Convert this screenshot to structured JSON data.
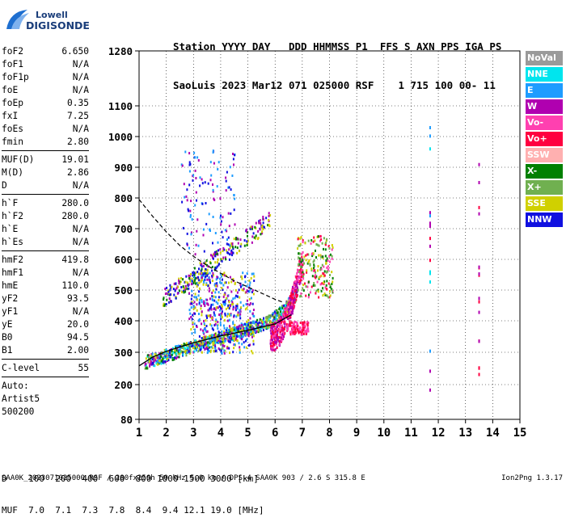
{
  "logo": {
    "line1": "Lowell",
    "line2": "DIGISONDE"
  },
  "header": {
    "row1": "Station YYYY DAY   DDD HHMMSS P1  FFS S AXN PPS IGA PS",
    "row2": "SaoLuis 2023 Mar12 071 025000 RSF    1 715 100 00- 11"
  },
  "params": [
    {
      "name": "foF2",
      "value": "6.650"
    },
    {
      "name": "foF1",
      "value": "N/A"
    },
    {
      "name": "foF1p",
      "value": "N/A"
    },
    {
      "name": "foE",
      "value": "N/A"
    },
    {
      "name": "foEp",
      "value": "0.35"
    },
    {
      "name": "fxI",
      "value": "7.25"
    },
    {
      "name": "foEs",
      "value": "N/A"
    },
    {
      "name": "fmin",
      "value": "2.80"
    },
    {
      "sep": true
    },
    {
      "name": "MUF(D)",
      "value": "19.01"
    },
    {
      "name": "M(D)",
      "value": "2.86"
    },
    {
      "name": "D",
      "value": "N/A"
    },
    {
      "sep": true
    },
    {
      "name": "h`F",
      "value": "280.0"
    },
    {
      "name": "h`F2",
      "value": "280.0"
    },
    {
      "name": "h`E",
      "value": "N/A"
    },
    {
      "name": "h`Es",
      "value": "N/A"
    },
    {
      "sep": true
    },
    {
      "name": "hmF2",
      "value": "419.8"
    },
    {
      "name": "hmF1",
      "value": "N/A"
    },
    {
      "name": "hmE",
      "value": "110.0"
    },
    {
      "name": "yF2",
      "value": "93.5"
    },
    {
      "name": "yF1",
      "value": "N/A"
    },
    {
      "name": "yE",
      "value": "20.0"
    },
    {
      "name": "B0",
      "value": "94.5"
    },
    {
      "name": "B1",
      "value": "2.00"
    },
    {
      "sep": true
    },
    {
      "name": "C-level",
      "value": "55"
    },
    {
      "sep": true
    }
  ],
  "auto": [
    "Auto:",
    "Artist5",
    "500200"
  ],
  "legend": [
    {
      "label": "NoVal",
      "color": "#9a9a9a"
    },
    {
      "label": "NNE",
      "color": "#00e5ee"
    },
    {
      "label": "E",
      "color": "#1e9cff"
    },
    {
      "label": "W",
      "color": "#b000b0"
    },
    {
      "label": "Vo-",
      "color": "#ff40b0"
    },
    {
      "label": "Vo+",
      "color": "#ff0040"
    },
    {
      "label": "SSW",
      "color": "#ffb0b0"
    },
    {
      "label": "X-",
      "color": "#008000"
    },
    {
      "label": "X+",
      "color": "#70b050"
    },
    {
      "label": "SSE",
      "color": "#d0d000"
    },
    {
      "label": "NNW",
      "color": "#1010e0"
    }
  ],
  "dtable": {
    "row1": "D    100  200  400  600  800 1000 1500 3000 [km]",
    "row2": "MUF  7.0  7.1  7.3  7.8  8.4  9.4 12.1 19.0 [MHz]"
  },
  "footer": "SAA0K_2023071025000.RSF / 280fx256h 50 kHz 5.0 km / DPS-4 SAA0K 903 / 2.6 S 315.8 E",
  "version": "Ion2Png 1.3.17",
  "chart_data": {
    "type": "scatter",
    "xlim": [
      1,
      15
    ],
    "ylim": [
      80,
      1280
    ],
    "x_ticks": [
      1,
      2,
      3,
      4,
      5,
      6,
      7,
      8,
      9,
      10,
      11,
      12,
      13,
      14,
      15
    ],
    "y_ticks": [
      80,
      200,
      300,
      400,
      500,
      600,
      700,
      800,
      900,
      1000,
      1100,
      1280
    ],
    "grid": true,
    "profile_solid": [
      [
        1.0,
        258
      ],
      [
        1.5,
        285
      ],
      [
        2.0,
        303
      ],
      [
        3.0,
        330
      ],
      [
        4.0,
        352
      ],
      [
        5.0,
        370
      ],
      [
        6.0,
        390
      ],
      [
        6.6,
        420
      ]
    ],
    "trace_dashed": [
      [
        1.0,
        795
      ],
      [
        1.5,
        740
      ],
      [
        2.0,
        690
      ],
      [
        2.5,
        645
      ],
      [
        3.0,
        610
      ],
      [
        3.5,
        580
      ],
      [
        4.0,
        555
      ],
      [
        4.5,
        530
      ],
      [
        5.0,
        510
      ],
      [
        5.5,
        490
      ],
      [
        6.0,
        470
      ],
      [
        6.3,
        460
      ]
    ],
    "echo_clusters": [
      {
        "name": "F-trace",
        "x": [
          1.2,
          6.8
        ],
        "h": [
          250,
          430
        ],
        "n": 900,
        "colors": [
          "#1010e0",
          "#b000b0",
          "#008000",
          "#70b050",
          "#d0d000",
          "#00e5ee",
          "#1e9cff"
        ]
      },
      {
        "name": "spread-F",
        "x": [
          2.8,
          5.2
        ],
        "h": [
          300,
          560
        ],
        "n": 550,
        "colors": [
          "#1010e0",
          "#b000b0",
          "#1e9cff",
          "#d0d000"
        ]
      },
      {
        "name": "O-cusp",
        "x": [
          5.8,
          7.0
        ],
        "h": [
          320,
          620
        ],
        "n": 420,
        "colors": [
          "#ff40b0",
          "#ff0040",
          "#b000b0"
        ]
      },
      {
        "name": "X-trace",
        "x": [
          6.8,
          8.1
        ],
        "h": [
          480,
          680
        ],
        "n": 200,
        "colors": [
          "#d0d000",
          "#ff40b0",
          "#70b050",
          "#008000",
          "#ff0040"
        ]
      },
      {
        "name": "multihop",
        "x": [
          1.8,
          5.8
        ],
        "h": [
          470,
          780
        ],
        "n": 260,
        "colors": [
          "#1010e0",
          "#b000b0",
          "#d0d000",
          "#008000"
        ]
      },
      {
        "name": "scatter-high",
        "x": [
          2.5,
          4.5
        ],
        "h": [
          620,
          960
        ],
        "n": 120,
        "colors": [
          "#1010e0",
          "#b000b0",
          "#1e9cff"
        ]
      },
      {
        "name": "Es-like",
        "x": [
          6.5,
          7.2
        ],
        "h": [
          360,
          400
        ],
        "n": 120,
        "colors": [
          "#ff40b0",
          "#ff0040"
        ]
      }
    ],
    "interference_columns": [
      {
        "x": 11.7,
        "h": [
          180,
          1200
        ],
        "colors": [
          "#00e5ee",
          "#ff0040",
          "#1e9cff",
          "#b000b0"
        ]
      },
      {
        "x": 13.5,
        "h": [
          180,
          920
        ],
        "colors": [
          "#b000b0",
          "#ff0040"
        ]
      }
    ]
  }
}
